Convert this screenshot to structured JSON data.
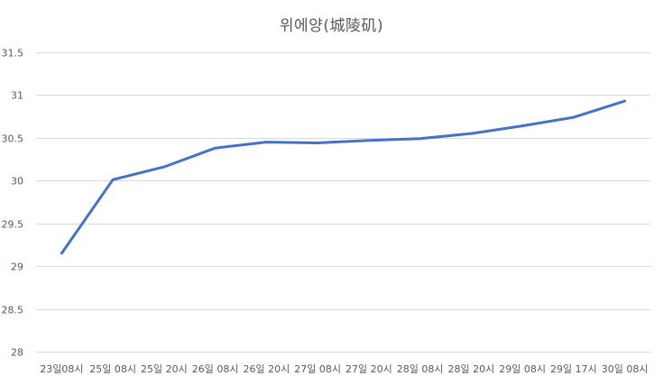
{
  "chart_data": {
    "type": "line",
    "title": "위에양(城陵矶)",
    "xlabel": "",
    "ylabel": "",
    "categories": [
      "23일08시",
      "25일 08시",
      "25일 20시",
      "26일 08시",
      "26일 20시",
      "27일 08시",
      "27일 20시",
      "28일 08시",
      "28일 20시",
      "29일 08시",
      "29일 17시",
      "30일 08시"
    ],
    "yticks": [
      "28",
      "28.5",
      "29",
      "29.5",
      "30",
      "30.5",
      "31",
      "31.5"
    ],
    "ylim": [
      28,
      31.5
    ],
    "grid": true,
    "series": [
      {
        "name": "위에양(城陵矶)",
        "color": "#4472c4",
        "values": [
          29.15,
          30.01,
          30.16,
          30.38,
          30.45,
          30.44,
          30.47,
          30.49,
          30.55,
          30.64,
          30.74,
          30.93
        ]
      }
    ]
  }
}
